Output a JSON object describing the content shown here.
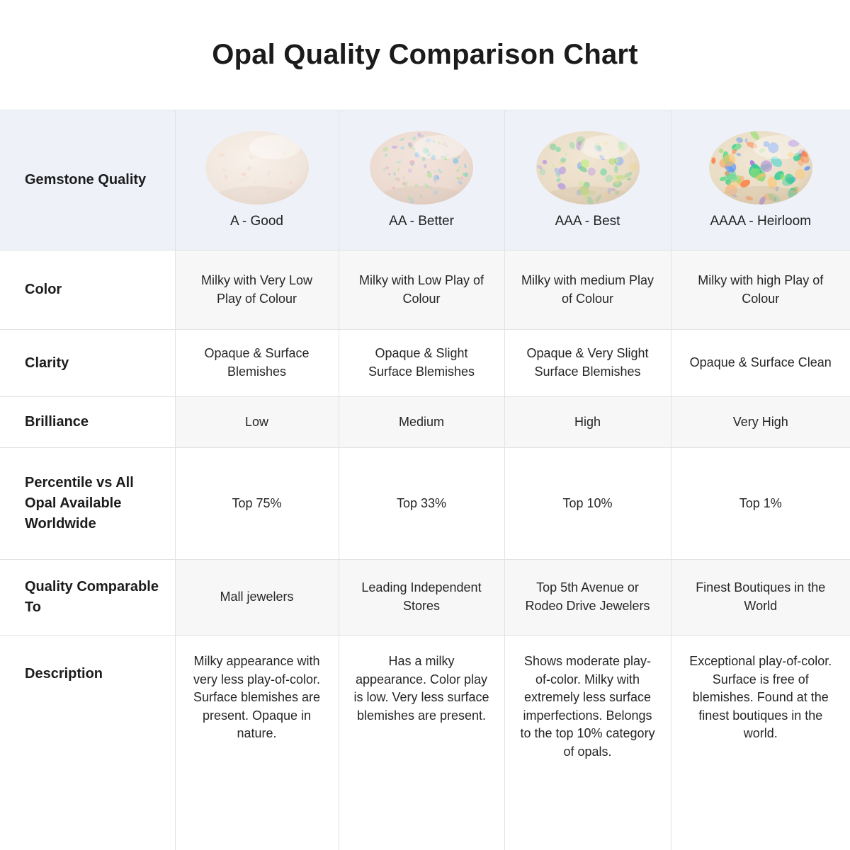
{
  "title": "Opal Quality Comparison Chart",
  "colors": {
    "header_row_bg": "#eef2f8",
    "stripe_cell_bg": "#f7f7f7",
    "border": "#e1e2e5",
    "title_text": "#1b1b1b",
    "body_text": "#262626",
    "label_text": "#1c1c1c"
  },
  "table": {
    "row_labels": {
      "gemstone_quality": "Gemstone Quality",
      "color": "Color",
      "clarity": "Clarity",
      "brilliance": "Brilliance",
      "percentile": "Percentile vs All Opal Available Worldwide",
      "comparable": "Quality Comparable To",
      "description": "Description"
    },
    "columns": [
      {
        "grade": "A - Good",
        "color": "Milky with Very Low Play of Colour",
        "clarity": "Opaque & Surface Blemishes",
        "brilliance": "Low",
        "percentile": "Top 75%",
        "comparable": "Mall jewelers",
        "description": "Milky appearance with very less play-of-color. Surface blemishes are present. Opaque in nature.",
        "opal": {
          "base_center": "#f8f1ea",
          "base_mid": "#f1e6dd",
          "base_edge": "#e4d4c9",
          "flecks": [
            "#f5cdb9",
            "#d9ecc4",
            "#cfe8df",
            "#f2d3de",
            "#e9f0c9"
          ],
          "fleck_count": 26,
          "fleck_min": 1.5,
          "fleck_max": 4,
          "fleck_opacity": 0.4
        }
      },
      {
        "grade": "AA - Better",
        "color": "Milky with Low Play of Colour",
        "clarity": "Opaque & Slight Surface Blemishes",
        "brilliance": "Medium",
        "percentile": "Top 33%",
        "comparable": "Leading Independent Stores",
        "description": "Has a milky appearance. Color play is low. Very less surface blemishes are present.",
        "opal": {
          "base_center": "#f2e4db",
          "base_mid": "#ecdad0",
          "base_edge": "#dcc7bb",
          "flecks": [
            "#86d8c0",
            "#9fd4f2",
            "#a9e394",
            "#f0aec4",
            "#74c5ec",
            "#bfaae8",
            "#8ee0d0"
          ],
          "fleck_count": 70,
          "fleck_min": 1.5,
          "fleck_max": 4.5,
          "fleck_opacity": 0.6
        }
      },
      {
        "grade": "AAA - Best",
        "color": "Milky with medium Play of Colour",
        "clarity": "Opaque & Very Slight Surface Blemishes",
        "brilliance": "High",
        "percentile": "Top 10%",
        "comparable": "Top 5th Avenue or Rodeo Drive Jewelers",
        "description": "Shows moderate play-of-color. Milky with extremely less surface imperfections. Belongs to the top 10% category of opals.",
        "opal": {
          "base_center": "#f0e6d3",
          "base_mid": "#eadcc6",
          "base_edge": "#d8c5ac",
          "flecks": [
            "#a5dd62",
            "#c3ec86",
            "#7bd9a8",
            "#92b1ef",
            "#b493e3",
            "#eed88a",
            "#62c98a"
          ],
          "fleck_count": 58,
          "fleck_min": 2.5,
          "fleck_max": 7,
          "fleck_opacity": 0.62
        }
      },
      {
        "grade": "AAAA - Heirloom",
        "color": "Milky with high Play of Colour",
        "clarity": "Opaque & Surface Clean",
        "brilliance": "Very High",
        "percentile": "Top 1%",
        "comparable": "Finest Boutiques in the World",
        "description": "Exceptional play-of-color. Surface is free of blemishes. Found at the finest boutiques in the world.",
        "opal": {
          "base_center": "#f0e6d4",
          "base_mid": "#e9dcc4",
          "base_edge": "#d5c2a5",
          "flecks": [
            "#ff9a56",
            "#fb7e43",
            "#58da85",
            "#2fcb96",
            "#6497f2",
            "#9c6ce2",
            "#ffc466",
            "#43d3d3",
            "#8fe06a"
          ],
          "fleck_count": 64,
          "fleck_min": 3,
          "fleck_max": 10,
          "fleck_opacity": 0.72
        }
      }
    ]
  }
}
